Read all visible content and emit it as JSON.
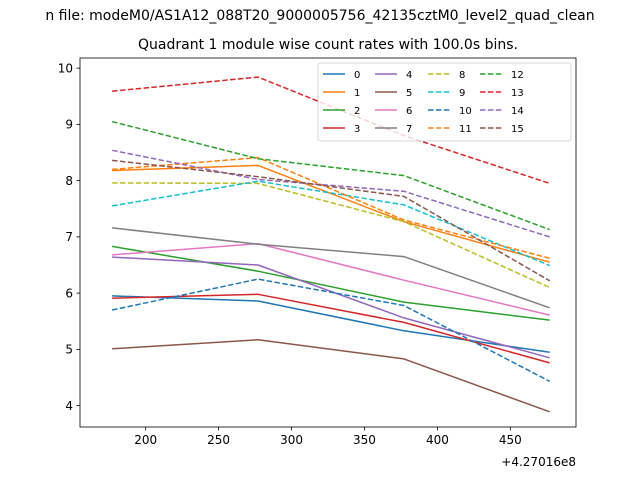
{
  "figure": {
    "suptitle": "n file: modeM0/AS1A12_088T20_9000005756_42135cztM0_level2_quad_clean",
    "offset_label": "+4.27016e8"
  },
  "chart_data": {
    "type": "line",
    "title": "Quadrant 1 module wise count rates with 100.0s bins.",
    "xlabel": "",
    "ylabel": "",
    "xlim": [
      155,
      495
    ],
    "ylim": [
      3.62,
      10.18
    ],
    "x_ticks": [
      200,
      250,
      300,
      350,
      400,
      450
    ],
    "y_ticks": [
      4,
      5,
      6,
      7,
      8,
      9,
      10
    ],
    "grid": false,
    "legend_placement": "top-right",
    "legend_columns": 4,
    "x": [
      177,
      277,
      377,
      477
    ],
    "series": [
      {
        "name": "0",
        "style": "solid",
        "color": "#1f77b4",
        "values": [
          5.95,
          5.86,
          5.33,
          4.95
        ]
      },
      {
        "name": "1",
        "style": "solid",
        "color": "#ff7f0e",
        "values": [
          8.18,
          8.27,
          7.27,
          6.55
        ]
      },
      {
        "name": "2",
        "style": "solid",
        "color": "#2ca02c",
        "values": [
          6.83,
          6.39,
          5.84,
          5.52
        ]
      },
      {
        "name": "3",
        "style": "solid",
        "color": "#d62728",
        "values": [
          5.91,
          5.98,
          5.48,
          4.76
        ]
      },
      {
        "name": "4",
        "style": "solid",
        "color": "#9467bd",
        "values": [
          6.64,
          6.5,
          5.56,
          4.85
        ]
      },
      {
        "name": "5",
        "style": "solid",
        "color": "#8c564b",
        "values": [
          5.01,
          5.17,
          4.83,
          3.89
        ]
      },
      {
        "name": "6",
        "style": "solid",
        "color": "#e377c2",
        "values": [
          6.68,
          6.88,
          6.23,
          5.61
        ]
      },
      {
        "name": "7",
        "style": "solid",
        "color": "#7f7f7f",
        "values": [
          7.16,
          6.87,
          6.65,
          5.74
        ]
      },
      {
        "name": "8",
        "style": "dashed",
        "color": "#bcbd22",
        "values": [
          7.96,
          7.95,
          7.27,
          6.1
        ]
      },
      {
        "name": "9",
        "style": "dashed",
        "color": "#17becf",
        "values": [
          7.55,
          7.99,
          7.57,
          6.49
        ]
      },
      {
        "name": "10",
        "style": "dashed",
        "color": "#1f77b4",
        "values": [
          5.7,
          6.25,
          5.78,
          4.43
        ]
      },
      {
        "name": "11",
        "style": "dashed",
        "color": "#ff7f0e",
        "values": [
          8.2,
          8.41,
          7.3,
          6.62
        ]
      },
      {
        "name": "12",
        "style": "dashed",
        "color": "#2ca02c",
        "values": [
          9.05,
          8.39,
          8.09,
          7.13
        ]
      },
      {
        "name": "13",
        "style": "dashed",
        "color": "#d62728",
        "values": [
          9.59,
          9.84,
          8.8,
          7.95
        ]
      },
      {
        "name": "14",
        "style": "dashed",
        "color": "#9467bd",
        "values": [
          8.54,
          8.02,
          7.81,
          7.0
        ]
      },
      {
        "name": "15",
        "style": "dashed",
        "color": "#8c564b",
        "values": [
          8.36,
          8.07,
          7.72,
          6.22
        ]
      }
    ]
  }
}
